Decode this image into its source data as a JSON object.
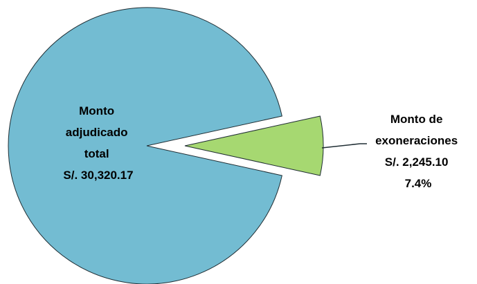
{
  "chart_data": {
    "type": "pie",
    "exploded": true,
    "legend": "none",
    "slices": [
      {
        "value": 30320.17,
        "color": "#73BCD2",
        "label_lines": [
          "Monto",
          "adjudicado",
          "total",
          "S/. 30,320.17"
        ]
      },
      {
        "value": 2245.1,
        "percent_label": "7.4%",
        "color": "#A6D871",
        "label_lines": [
          "Monto de",
          "exoneraciones",
          "S/. 2,245.10",
          "7.4%"
        ]
      }
    ]
  }
}
